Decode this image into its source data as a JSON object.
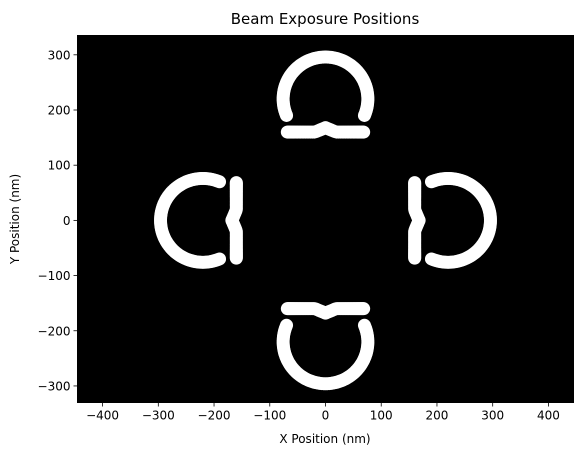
{
  "chart_data": {
    "type": "scatter",
    "title": "Beam Exposure Positions",
    "xlabel": "X Position (nm)",
    "ylabel": "Y Position (nm)",
    "xlim": [
      -445,
      445
    ],
    "ylim": [
      -330,
      335
    ],
    "xticks": [
      -400,
      -300,
      -200,
      -100,
      0,
      100,
      200,
      300,
      400
    ],
    "yticks": [
      -300,
      -200,
      -100,
      0,
      100,
      200,
      300
    ],
    "xtick_labels": [
      "−400",
      "−300",
      "−200",
      "−100",
      "0",
      "100",
      "200",
      "300",
      "400"
    ],
    "ytick_labels": [
      "−300",
      "−200",
      "−100",
      "0",
      "100",
      "200",
      "300"
    ],
    "grid": false,
    "background_color": "#000000",
    "marker_color": "#ffffff",
    "shape_center_distance": 220,
    "shape_outer_radius": 80,
    "shape_inner_offset": 60,
    "shapes": [
      {
        "center": [
          0,
          220
        ],
        "orientation": "up"
      },
      {
        "center": [
          220,
          0
        ],
        "orientation": "right"
      },
      {
        "center": [
          0,
          -220
        ],
        "orientation": "down"
      },
      {
        "center": [
          -220,
          0
        ],
        "orientation": "left"
      }
    ]
  }
}
